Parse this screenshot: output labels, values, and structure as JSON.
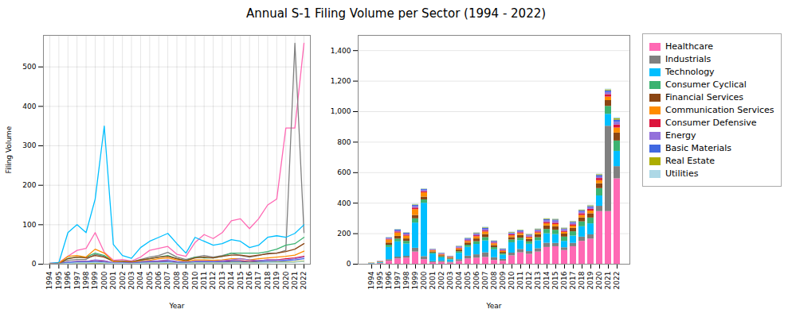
{
  "chart_data": [
    {
      "type": "line",
      "title": "Annual S-1 Filing Volume per Sector (1994 - 2022)",
      "xlabel": "Year",
      "ylabel": "Filing Volume",
      "x": [
        1994,
        1995,
        1996,
        1997,
        1998,
        1999,
        2000,
        2001,
        2002,
        2003,
        2004,
        2005,
        2006,
        2007,
        2008,
        2009,
        2010,
        2011,
        2012,
        2013,
        2014,
        2015,
        2016,
        2017,
        2018,
        2019,
        2020,
        2021,
        2022
      ],
      "xlim": [
        1993.3,
        2022.7
      ],
      "xticks": [
        1994,
        1995,
        1996,
        1997,
        1998,
        1999,
        2000,
        2001,
        2002,
        2003,
        2004,
        2005,
        2006,
        2007,
        2008,
        2009,
        2010,
        2011,
        2012,
        2013,
        2014,
        2015,
        2016,
        2017,
        2018,
        2019,
        2020,
        2021,
        2022
      ],
      "ylim": [
        0,
        580
      ],
      "yticks": [
        0,
        100,
        200,
        300,
        400,
        500
      ],
      "grid": true,
      "series": [
        {
          "name": "Healthcare",
          "color": "#FF69B4",
          "values": [
            2,
            4,
            20,
            35,
            40,
            80,
            30,
            10,
            12,
            8,
            18,
            35,
            40,
            45,
            25,
            20,
            55,
            75,
            65,
            80,
            110,
            115,
            90,
            115,
            150,
            165,
            345,
            345,
            560
          ]
        },
        {
          "name": "Industrials",
          "color": "#808080",
          "values": [
            1,
            2,
            10,
            12,
            12,
            25,
            20,
            7,
            8,
            6,
            12,
            18,
            22,
            30,
            18,
            12,
            18,
            22,
            18,
            22,
            28,
            22,
            18,
            22,
            28,
            28,
            35,
            560,
            80
          ]
        },
        {
          "name": "Technology",
          "color": "#00BFFF",
          "values": [
            2,
            4,
            80,
            100,
            80,
            165,
            350,
            50,
            22,
            15,
            42,
            58,
            68,
            78,
            52,
            28,
            68,
            58,
            48,
            52,
            62,
            58,
            42,
            48,
            68,
            72,
            68,
            78,
            100
          ]
        },
        {
          "name": "Consumer Cyclical",
          "color": "#3CB371",
          "values": [
            1,
            2,
            15,
            18,
            18,
            28,
            22,
            7,
            7,
            5,
            10,
            14,
            18,
            22,
            14,
            9,
            18,
            16,
            16,
            20,
            28,
            28,
            28,
            28,
            32,
            38,
            48,
            52,
            68
          ]
        },
        {
          "name": "Financial Services",
          "color": "#8B4513",
          "values": [
            1,
            2,
            14,
            18,
            16,
            22,
            18,
            7,
            7,
            6,
            11,
            14,
            18,
            20,
            14,
            9,
            16,
            18,
            16,
            20,
            23,
            23,
            20,
            23,
            26,
            28,
            32,
            38,
            52
          ]
        },
        {
          "name": "Communication Services",
          "color": "#FF8C00",
          "values": [
            1,
            2,
            20,
            22,
            18,
            38,
            28,
            7,
            5,
            4,
            8,
            10,
            14,
            16,
            11,
            7,
            11,
            11,
            10,
            11,
            14,
            14,
            11,
            14,
            16,
            18,
            20,
            23,
            33
          ]
        },
        {
          "name": "Consumer Defensive",
          "color": "#DC143C",
          "values": [
            0,
            1,
            5,
            7,
            7,
            10,
            8,
            3,
            3,
            2,
            5,
            6,
            7,
            7,
            5,
            4,
            7,
            7,
            6,
            7,
            9,
            9,
            7,
            9,
            11,
            11,
            14,
            16,
            20
          ]
        },
        {
          "name": "Energy",
          "color": "#9370DB",
          "values": [
            0,
            1,
            5,
            7,
            7,
            11,
            9,
            4,
            4,
            3,
            6,
            8,
            9,
            11,
            7,
            5,
            7,
            7,
            7,
            9,
            11,
            14,
            11,
            9,
            11,
            11,
            11,
            14,
            18
          ]
        },
        {
          "name": "Basic Materials",
          "color": "#4169E1",
          "values": [
            0,
            1,
            4,
            5,
            5,
            7,
            5,
            2,
            3,
            2,
            4,
            5,
            5,
            7,
            4,
            4,
            5,
            5,
            5,
            5,
            7,
            7,
            5,
            7,
            7,
            7,
            9,
            11,
            14
          ]
        },
        {
          "name": "Real Estate",
          "color": "#ADAD00",
          "values": [
            0,
            0,
            1,
            2,
            2,
            3,
            2,
            1,
            1,
            1,
            2,
            2,
            3,
            3,
            2,
            2,
            3,
            3,
            3,
            3,
            4,
            4,
            4,
            4,
            4,
            5,
            5,
            6,
            8
          ]
        },
        {
          "name": "Utilities",
          "color": "#ADD8E6",
          "values": [
            0,
            0,
            2,
            3,
            3,
            4,
            3,
            2,
            2,
            1,
            2,
            3,
            3,
            4,
            2,
            2,
            3,
            3,
            3,
            3,
            3,
            3,
            3,
            3,
            4,
            4,
            4,
            5,
            7
          ]
        }
      ]
    },
    {
      "type": "bar",
      "stacked": true,
      "xlabel": "Year",
      "categories": [
        1994,
        1995,
        1996,
        1997,
        1998,
        1999,
        2000,
        2001,
        2002,
        2003,
        2004,
        2005,
        2006,
        2007,
        2008,
        2009,
        2010,
        2011,
        2012,
        2013,
        2014,
        2015,
        2016,
        2017,
        2018,
        2019,
        2020,
        2021,
        2022
      ],
      "ylim": [
        0,
        1500
      ],
      "yticks": [
        0,
        200,
        400,
        600,
        800,
        {
          "value": 1000,
          "label": "1,000"
        },
        {
          "value": 1200,
          "label": "1,200"
        },
        {
          "value": 1400,
          "label": "1,400"
        }
      ],
      "grid": true,
      "legend": "right",
      "series": [
        {
          "name": "Healthcare",
          "color": "#FF69B4",
          "values": [
            2,
            4,
            20,
            35,
            40,
            80,
            30,
            10,
            12,
            8,
            18,
            35,
            40,
            45,
            25,
            20,
            55,
            75,
            65,
            80,
            110,
            115,
            90,
            115,
            150,
            165,
            345,
            345,
            560
          ]
        },
        {
          "name": "Industrials",
          "color": "#808080",
          "values": [
            1,
            2,
            10,
            12,
            12,
            25,
            20,
            7,
            8,
            6,
            12,
            18,
            22,
            30,
            18,
            12,
            18,
            22,
            18,
            22,
            28,
            22,
            18,
            22,
            28,
            28,
            35,
            560,
            80
          ]
        },
        {
          "name": "Technology",
          "color": "#00BFFF",
          "values": [
            2,
            4,
            80,
            100,
            80,
            165,
            350,
            50,
            22,
            15,
            42,
            58,
            68,
            78,
            52,
            28,
            68,
            58,
            48,
            52,
            62,
            58,
            42,
            48,
            68,
            72,
            68,
            78,
            100
          ]
        },
        {
          "name": "Consumer Cyclical",
          "color": "#3CB371",
          "values": [
            1,
            2,
            15,
            18,
            18,
            28,
            22,
            7,
            7,
            5,
            10,
            14,
            18,
            22,
            14,
            9,
            18,
            16,
            16,
            20,
            28,
            28,
            28,
            28,
            32,
            38,
            48,
            52,
            68
          ]
        },
        {
          "name": "Financial Services",
          "color": "#8B4513",
          "values": [
            1,
            2,
            14,
            18,
            16,
            22,
            18,
            7,
            7,
            6,
            11,
            14,
            18,
            20,
            14,
            9,
            16,
            18,
            16,
            20,
            23,
            23,
            20,
            23,
            26,
            28,
            32,
            38,
            52
          ]
        },
        {
          "name": "Communication Services",
          "color": "#FF8C00",
          "values": [
            1,
            2,
            20,
            22,
            18,
            38,
            28,
            7,
            5,
            4,
            8,
            10,
            14,
            16,
            11,
            7,
            11,
            11,
            10,
            11,
            14,
            14,
            11,
            14,
            16,
            18,
            20,
            23,
            33
          ]
        },
        {
          "name": "Consumer Defensive",
          "color": "#DC143C",
          "values": [
            0,
            1,
            5,
            7,
            7,
            10,
            8,
            3,
            3,
            2,
            5,
            6,
            7,
            7,
            5,
            4,
            7,
            7,
            6,
            7,
            9,
            9,
            7,
            9,
            11,
            11,
            14,
            16,
            20
          ]
        },
        {
          "name": "Energy",
          "color": "#9370DB",
          "values": [
            0,
            1,
            5,
            7,
            7,
            11,
            9,
            4,
            4,
            3,
            6,
            8,
            9,
            11,
            7,
            5,
            7,
            7,
            7,
            9,
            11,
            14,
            11,
            9,
            11,
            11,
            11,
            14,
            18
          ]
        },
        {
          "name": "Basic Materials",
          "color": "#4169E1",
          "values": [
            0,
            1,
            4,
            5,
            5,
            7,
            5,
            2,
            3,
            2,
            4,
            5,
            5,
            7,
            4,
            4,
            5,
            5,
            5,
            5,
            7,
            7,
            5,
            7,
            7,
            7,
            9,
            11,
            14
          ]
        },
        {
          "name": "Real Estate",
          "color": "#ADAD00",
          "values": [
            0,
            0,
            1,
            2,
            2,
            3,
            2,
            1,
            1,
            1,
            2,
            2,
            3,
            3,
            2,
            2,
            3,
            3,
            3,
            3,
            4,
            4,
            4,
            4,
            4,
            5,
            5,
            6,
            8
          ]
        },
        {
          "name": "Utilities",
          "color": "#ADD8E6",
          "values": [
            0,
            0,
            2,
            3,
            3,
            4,
            3,
            2,
            2,
            1,
            2,
            3,
            3,
            4,
            2,
            2,
            3,
            3,
            3,
            3,
            3,
            3,
            3,
            3,
            4,
            4,
            4,
            5,
            7
          ]
        }
      ]
    }
  ]
}
